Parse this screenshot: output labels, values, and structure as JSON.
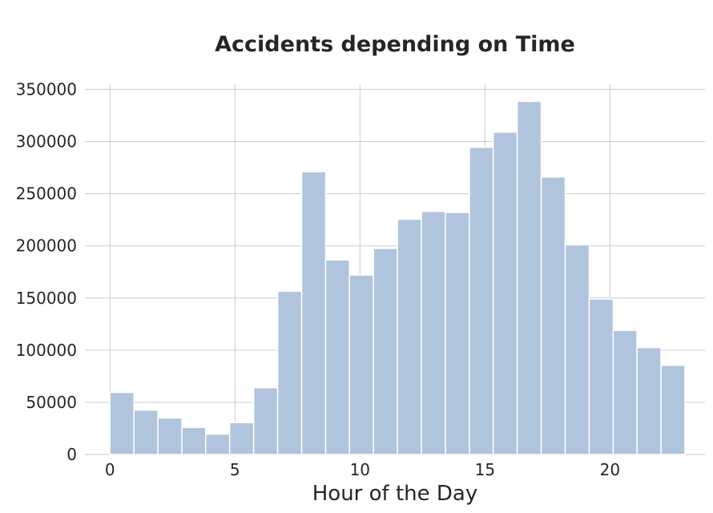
{
  "chart_data": {
    "type": "bar",
    "title": "Accidents depending on Time",
    "xlabel": "Hour of the Day",
    "ylabel": "",
    "bar_color": "#b0c4de",
    "grid": true,
    "legend": "none",
    "xlim": [
      -1,
      23.8
    ],
    "ylim": [
      0,
      355000
    ],
    "x_ticks": [
      0,
      5,
      10,
      15,
      20
    ],
    "y_ticks": [
      0,
      50000,
      100000,
      150000,
      200000,
      250000,
      300000,
      350000
    ],
    "x_tick_labels": [
      "0",
      "5",
      "10",
      "15",
      "20"
    ],
    "y_tick_labels": [
      "0",
      "50000",
      "100000",
      "150000",
      "200000",
      "250000",
      "300000",
      "350000"
    ],
    "bins": [
      {
        "start": 0,
        "end": 0.96,
        "value": 59500
      },
      {
        "start": 0.96,
        "end": 1.92,
        "value": 42500
      },
      {
        "start": 1.92,
        "end": 2.88,
        "value": 35000
      },
      {
        "start": 2.88,
        "end": 3.83,
        "value": 26000
      },
      {
        "start": 3.83,
        "end": 4.79,
        "value": 19500
      },
      {
        "start": 4.79,
        "end": 5.75,
        "value": 30500
      },
      {
        "start": 5.75,
        "end": 6.71,
        "value": 64000
      },
      {
        "start": 6.71,
        "end": 7.67,
        "value": 156500
      },
      {
        "start": 7.67,
        "end": 8.63,
        "value": 271000
      },
      {
        "start": 8.63,
        "end": 9.58,
        "value": 186500
      },
      {
        "start": 9.58,
        "end": 10.54,
        "value": 172000
      },
      {
        "start": 10.54,
        "end": 11.5,
        "value": 197500
      },
      {
        "start": 11.5,
        "end": 12.46,
        "value": 225500
      },
      {
        "start": 12.46,
        "end": 13.42,
        "value": 233000
      },
      {
        "start": 13.42,
        "end": 14.38,
        "value": 232000
      },
      {
        "start": 14.38,
        "end": 15.33,
        "value": 294500
      },
      {
        "start": 15.33,
        "end": 16.29,
        "value": 309000
      },
      {
        "start": 16.29,
        "end": 17.25,
        "value": 338500
      },
      {
        "start": 17.25,
        "end": 18.21,
        "value": 266000
      },
      {
        "start": 18.21,
        "end": 19.17,
        "value": 201000
      },
      {
        "start": 19.17,
        "end": 20.13,
        "value": 149000
      },
      {
        "start": 20.13,
        "end": 21.08,
        "value": 119000
      },
      {
        "start": 21.08,
        "end": 22.04,
        "value": 102500
      },
      {
        "start": 22.04,
        "end": 23,
        "value": 85500
      }
    ]
  }
}
